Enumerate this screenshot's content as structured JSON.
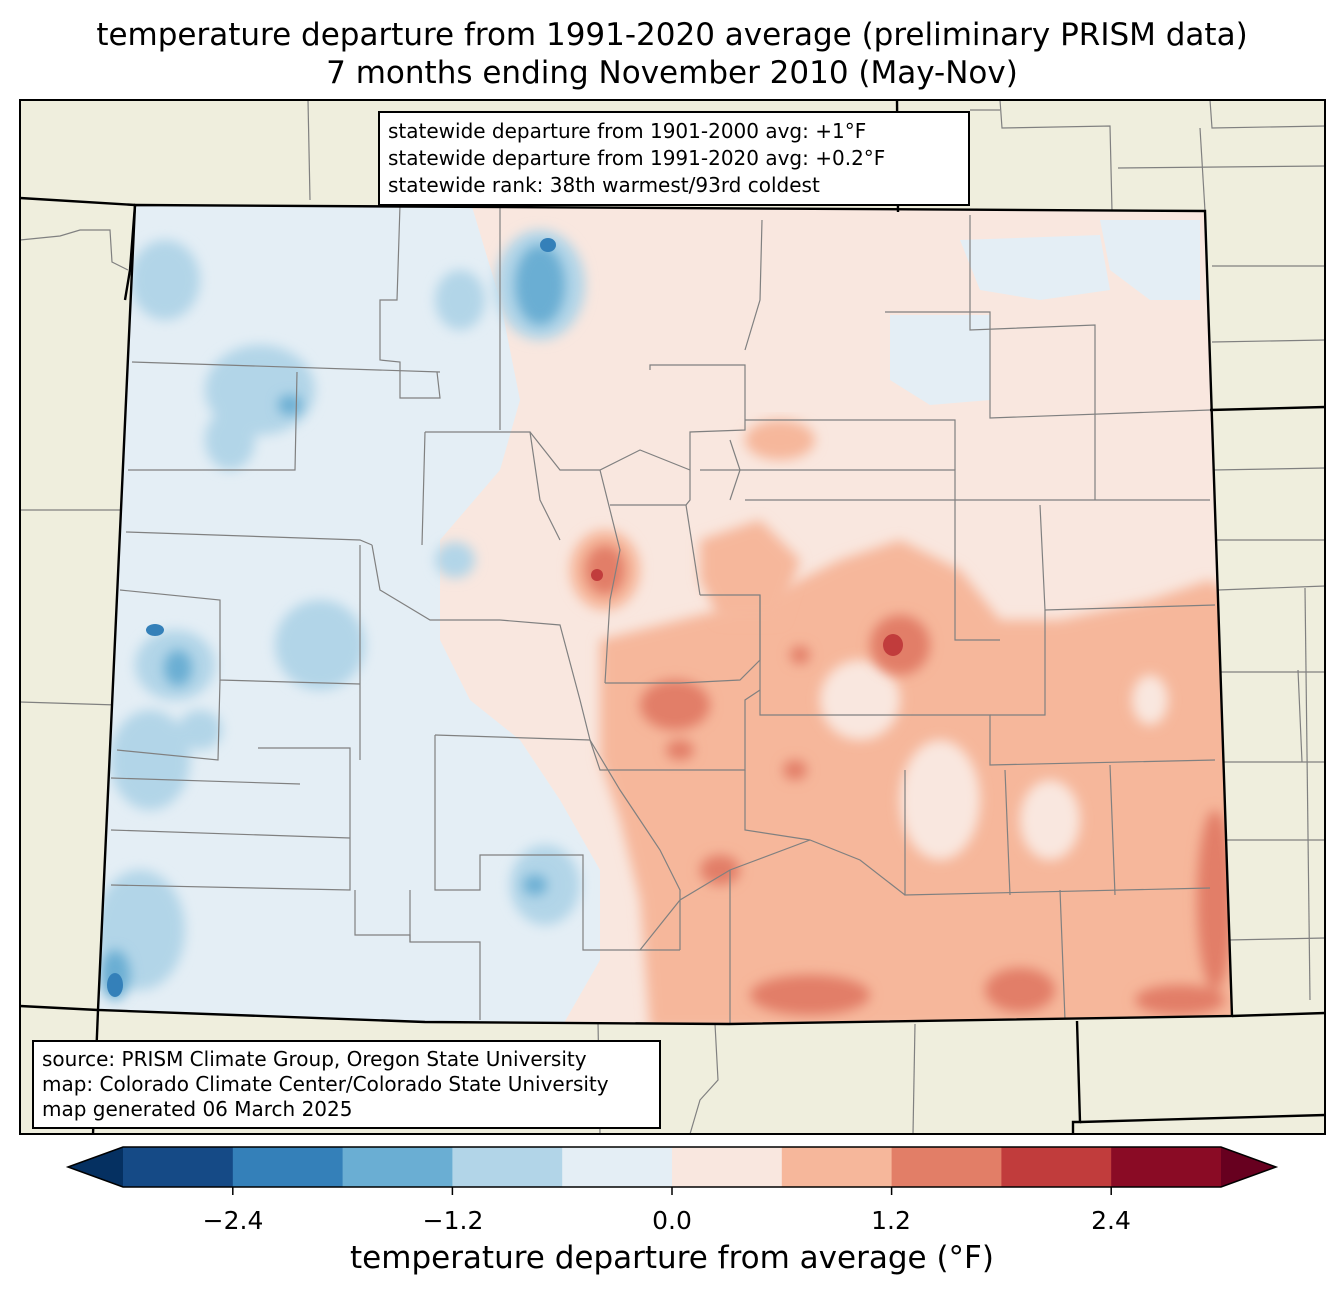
{
  "title": {
    "line1": "temperature departure from 1991-2020 average (preliminary PRISM data)",
    "line2": "7 months ending November 2010 (May-Nov)"
  },
  "stats": {
    "line1": "statewide departure from 1901-2000 avg: +1°F",
    "line2": "statewide departure from 1991-2020 avg: +0.2°F",
    "line3": "statewide rank: 38th warmest/93rd coldest"
  },
  "credits": {
    "line1": "source: PRISM Climate Group, Oregon State University",
    "line2": "map: Colorado Climate Center/Colorado State University",
    "line3": "map generated 06 March 2025"
  },
  "colorbar": {
    "label": "temperature departure from average (°F)",
    "ticks": [
      "−2.4",
      "−1.2",
      "0.0",
      "1.2",
      "2.4"
    ],
    "bins": [
      -3.0,
      -2.4,
      -1.8,
      -1.2,
      -0.6,
      0.0,
      0.6,
      1.2,
      1.8,
      2.4,
      3.0
    ],
    "colors": [
      "#053061",
      "#154a86",
      "#3480b9",
      "#6aaed3",
      "#b2d5e8",
      "#e4eef5",
      "#f9e7df",
      "#f6b79b",
      "#e27e67",
      "#c13c3c",
      "#8a0b25",
      "#67001f"
    ]
  },
  "map": {
    "land_color": "#efeedd",
    "state_border_color": "#000000",
    "county_line_color": "#808080"
  }
}
